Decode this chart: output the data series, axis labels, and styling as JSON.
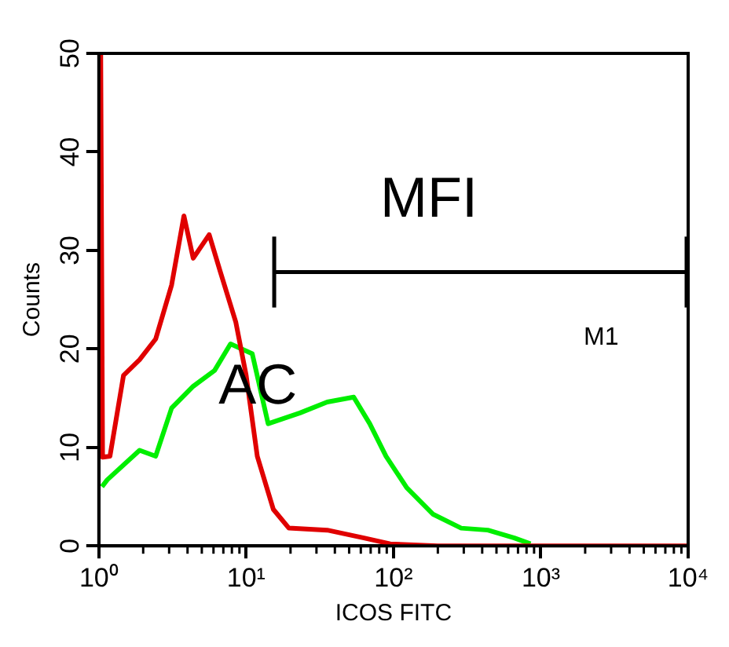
{
  "chart_data": {
    "type": "line",
    "xlabel": "ICOS FITC",
    "ylabel": "Counts",
    "log": "x",
    "xlim": [
      1,
      10000
    ],
    "xticks": [
      {
        "value": 1,
        "label": "10⁰"
      },
      {
        "value": 10,
        "label": "10¹"
      },
      {
        "value": 100,
        "label": "10²"
      },
      {
        "value": 1000,
        "label": "10³"
      },
      {
        "value": 10000,
        "label": "10⁴"
      }
    ],
    "ylim": [
      0,
      50
    ],
    "yticks": [
      0,
      10,
      20,
      30,
      40,
      50
    ],
    "legend": false,
    "series": [
      {
        "color": "#e00000",
        "x": [
          1.03,
          1.06,
          1.19,
          1.47,
          1.89,
          2.43,
          3.12,
          3.78,
          4.37,
          5.61,
          6.62,
          8.51,
          10,
          11.9,
          15.3,
          19.5,
          35.5,
          63,
          95,
          200,
          10000
        ],
        "values": [
          50,
          9,
          9.1,
          17.3,
          18.9,
          21,
          26.5,
          33.5,
          29.2,
          31.6,
          28,
          22.7,
          17.3,
          9.1,
          3.7,
          1.8,
          1.6,
          0.8,
          0.2,
          0,
          0
        ]
      },
      {
        "color": "#00ee00",
        "x": [
          1.05,
          1.14,
          1.89,
          2.43,
          3.12,
          4.37,
          6.1,
          7.83,
          11,
          14.1,
          23.2,
          35.5,
          53.7,
          69,
          89,
          123,
          186,
          288,
          437,
          661,
          851
        ],
        "values": [
          6,
          6.7,
          9.7,
          9.1,
          14,
          16.2,
          17.8,
          20.5,
          19.5,
          12.4,
          13.5,
          14.6,
          15.1,
          12.4,
          9.1,
          5.9,
          3.2,
          1.8,
          1.6,
          0.8,
          0.2
        ]
      },
      {
        "name": "M1",
        "color": "#000000",
        "x": [
          15.5,
          10000
        ],
        "values": [
          27.8,
          27.8
        ],
        "errors": [
          3.6,
          3.6
        ]
      }
    ],
    "annotations": [
      "MFI",
      {
        "text": "AC",
        "x": 12,
        "y": 16
      }
    ]
  }
}
